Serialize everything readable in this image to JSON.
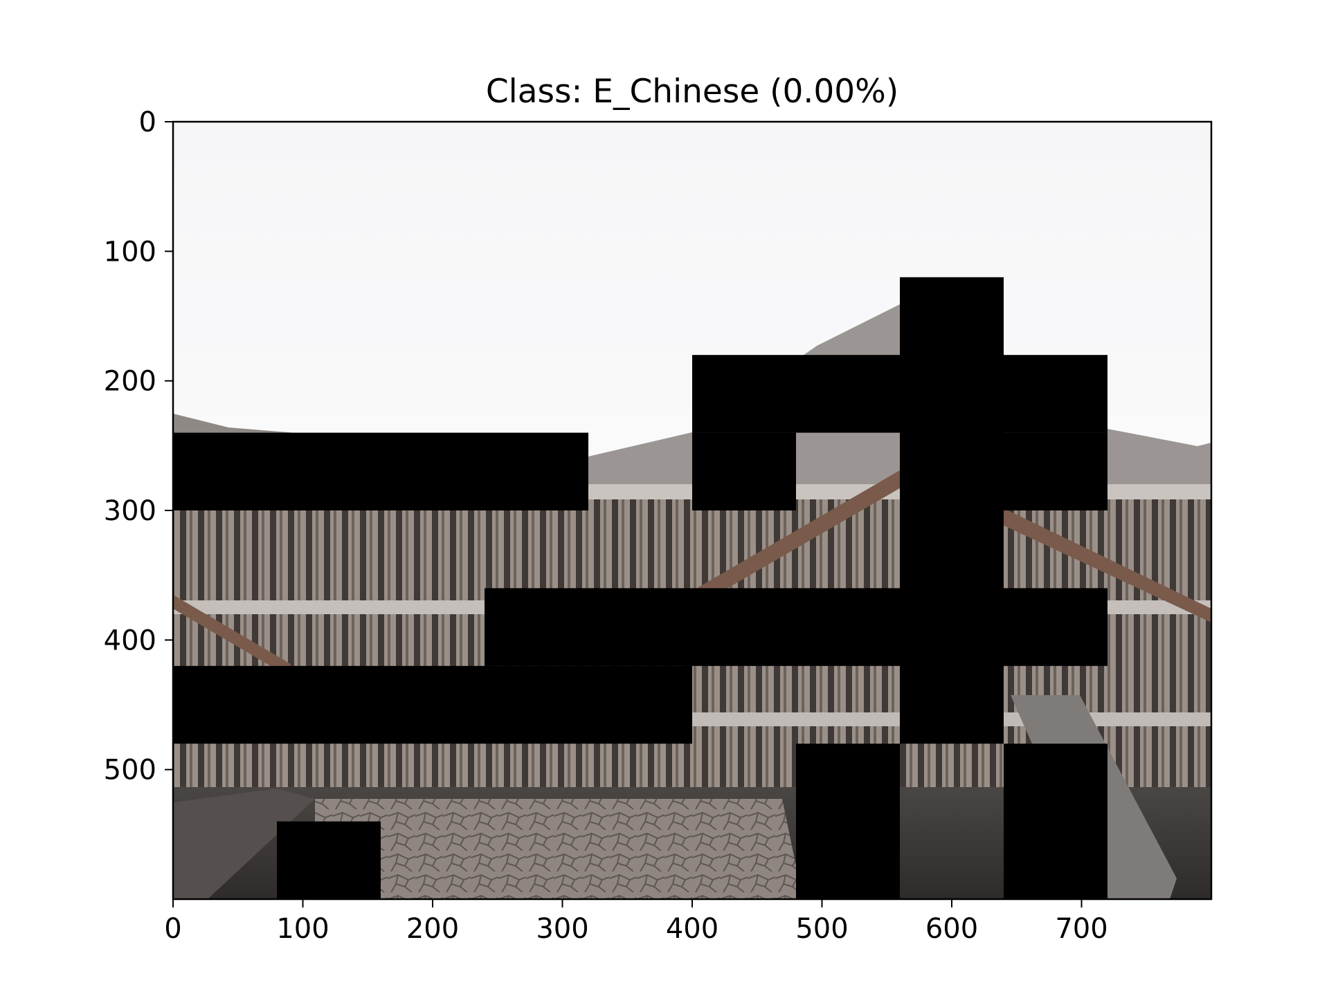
{
  "chart_data": {
    "type": "heatmap",
    "title": "Class: E_Chinese (0.00%)",
    "xlabel": "",
    "ylabel": "",
    "image_extent": {
      "width": 800,
      "height": 600
    },
    "xlim": [
      0,
      800
    ],
    "ylim": [
      600,
      0
    ],
    "x_ticks": [
      0,
      100,
      200,
      300,
      400,
      500,
      600,
      700
    ],
    "y_ticks": [
      0,
      100,
      200,
      300,
      400,
      500
    ],
    "grid": false,
    "legend": "none",
    "image_content": "photo of a modernist concrete building with external staircases, partially occluded by black rectangular masks",
    "mask_color": "#000000",
    "masks": [
      {
        "x": [
          0,
          320
        ],
        "y": [
          240,
          300
        ]
      },
      {
        "x": [
          400,
          720
        ],
        "y": [
          180,
          240
        ]
      },
      {
        "x": [
          400,
          480
        ],
        "y": [
          240,
          300
        ]
      },
      {
        "x": [
          640,
          720
        ],
        "y": [
          240,
          300
        ]
      },
      {
        "x": [
          560,
          640
        ],
        "y": [
          120,
          480
        ]
      },
      {
        "x": [
          240,
          720
        ],
        "y": [
          360,
          420
        ]
      },
      {
        "x": [
          0,
          400
        ],
        "y": [
          420,
          480
        ]
      },
      {
        "x": [
          480,
          560
        ],
        "y": [
          480,
          600
        ]
      },
      {
        "x": [
          640,
          720
        ],
        "y": [
          480,
          600
        ]
      },
      {
        "x": [
          80,
          160
        ],
        "y": [
          540,
          600
        ]
      }
    ]
  }
}
